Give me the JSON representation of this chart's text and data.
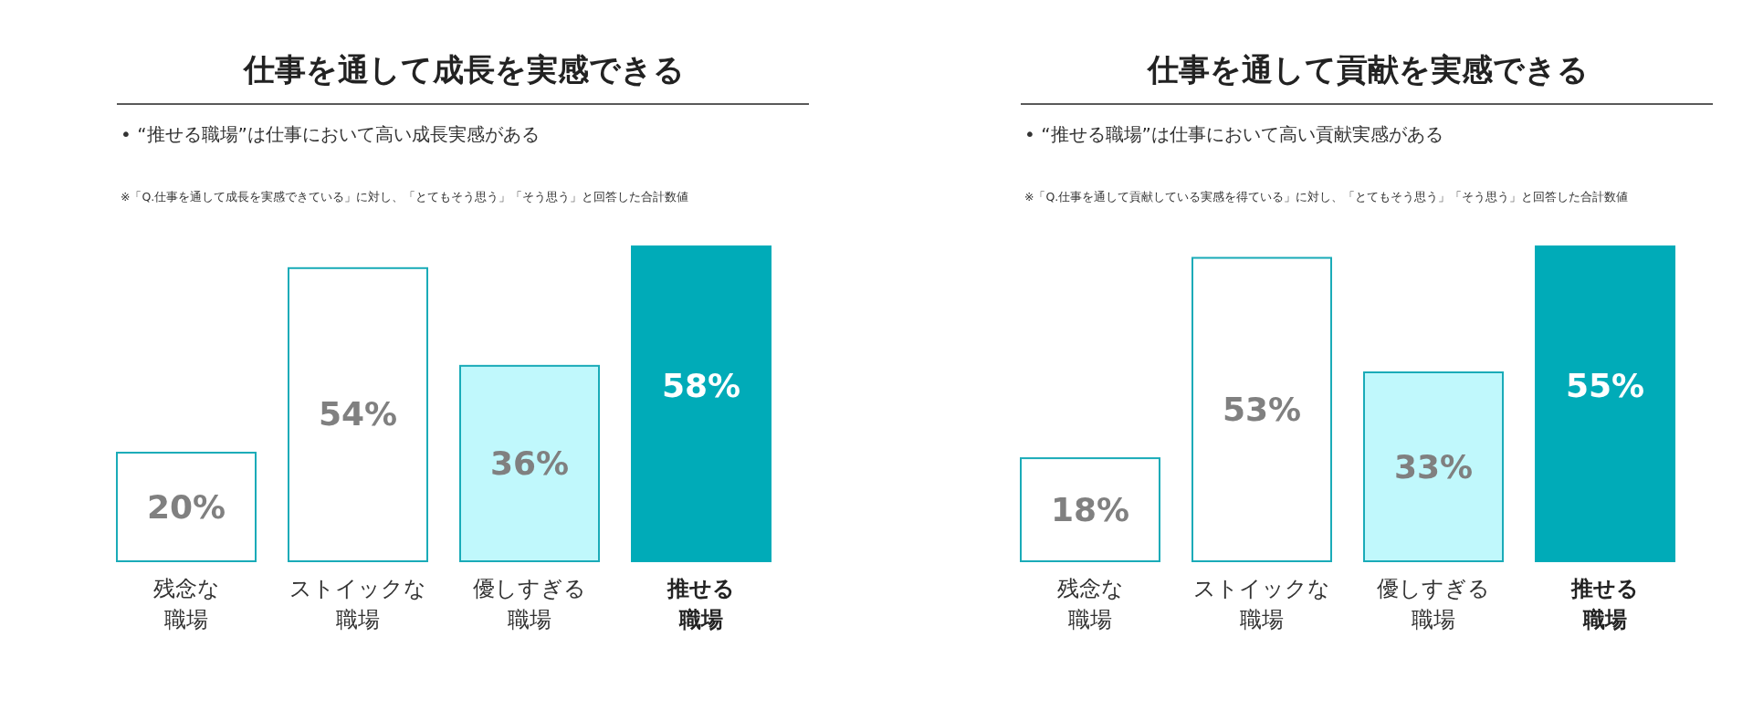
{
  "chart_data": [
    {
      "type": "bar",
      "title": "仕事を通して成長を実感できる",
      "subtitle": "•  “推せる職場”は仕事において高い成長実感がある",
      "annotations": [
        "※「Q.仕事を通して成長を実感できている」に対し、「とてもそう思う」「そう思う」と回答した合計数値"
      ],
      "categories": [
        "残念な職場",
        "ストイックな職場",
        "優しすぎる職場",
        "推せる職場"
      ],
      "values": [
        20,
        54,
        36,
        58
      ],
      "colors": [
        "#ffffff",
        "#ffffff",
        "#c0f8fc",
        "#00abb8"
      ],
      "data_labels": true,
      "value_labels": [
        "20%",
        "54%",
        "36%",
        "58%"
      ]
    },
    {
      "type": "bar",
      "title": "仕事を通して貢献を実感できる",
      "subtitle": "•  “推せる職場”は仕事において高い貢献実感がある",
      "annotations": [
        "※「Q.仕事を通して貢献している実感を得ている」に対し、「とてもそう思う」「そう思う」と回答した合計数値"
      ],
      "categories": [
        "残念な職場",
        "ストイックな職場",
        "優しすぎる職場",
        "推せる職場"
      ],
      "values": [
        18,
        53,
        33,
        55
      ],
      "colors": [
        "#ffffff",
        "#ffffff",
        "#c0f8fc",
        "#00abb8"
      ],
      "data_labels": true,
      "value_labels": [
        "18%",
        "53%",
        "33%",
        "55%"
      ]
    }
  ]
}
